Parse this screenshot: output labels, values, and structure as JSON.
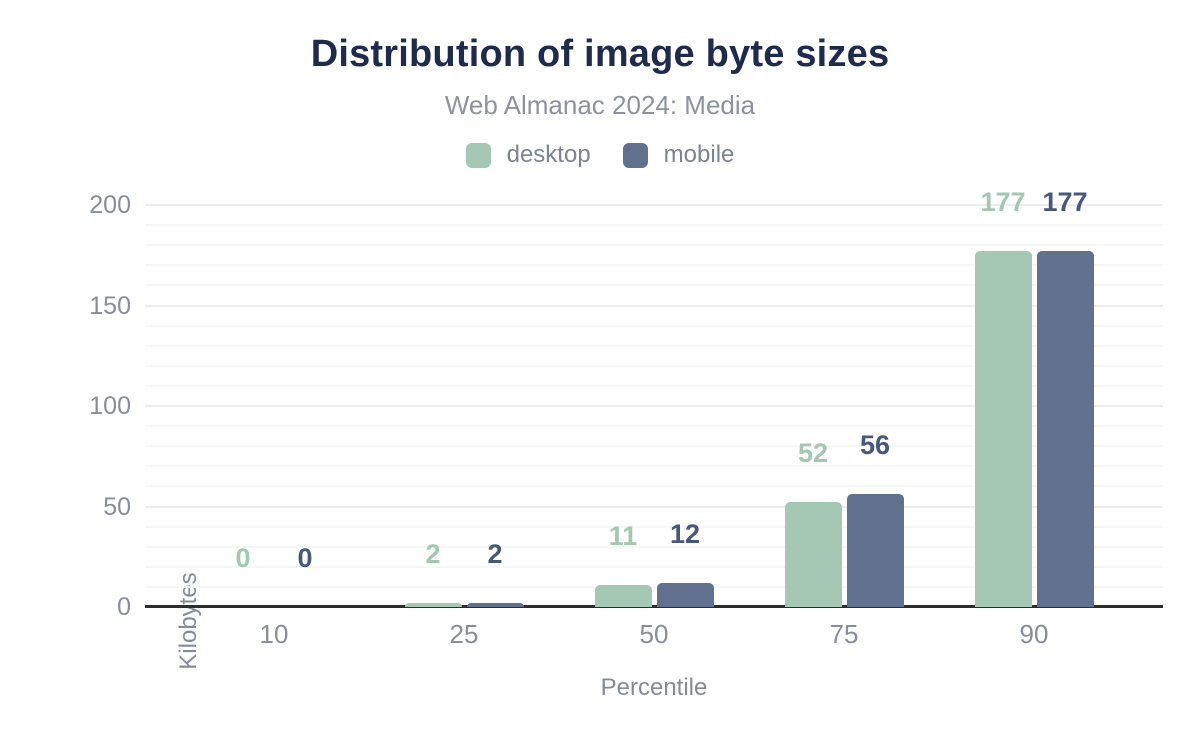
{
  "chart_data": {
    "type": "bar",
    "title": "Distribution of image byte sizes",
    "subtitle": "Web Almanac 2024: Media",
    "xlabel": "Percentile",
    "ylabel": "Kilobytes",
    "categories": [
      "10",
      "25",
      "50",
      "75",
      "90"
    ],
    "series": [
      {
        "name": "desktop",
        "color": "#a5c8b5",
        "label_color": "#a2c7b2",
        "values": [
          0,
          2,
          11,
          52,
          177
        ]
      },
      {
        "name": "mobile",
        "color": "#60708e",
        "label_color": "#47587a",
        "values": [
          0,
          2,
          12,
          56,
          177
        ]
      }
    ],
    "ylim": [
      0,
      200
    ],
    "y_ticks": [
      0,
      50,
      100,
      150,
      200
    ],
    "minor_grid_step": 10,
    "grid": "horizontal",
    "legend_position": "top"
  },
  "theme": {
    "background": "#ffffff",
    "title_color": "#1e2b4d",
    "subtitle_color": "#8d939d",
    "tick_label_color": "#878e99",
    "axis_title_color": "#858b96",
    "legend_label_color": "#7d848f",
    "axis_line_color": "#2d2d2d",
    "grid_major_color": "#ededee",
    "grid_minor_color": "#f5f6f6"
  }
}
